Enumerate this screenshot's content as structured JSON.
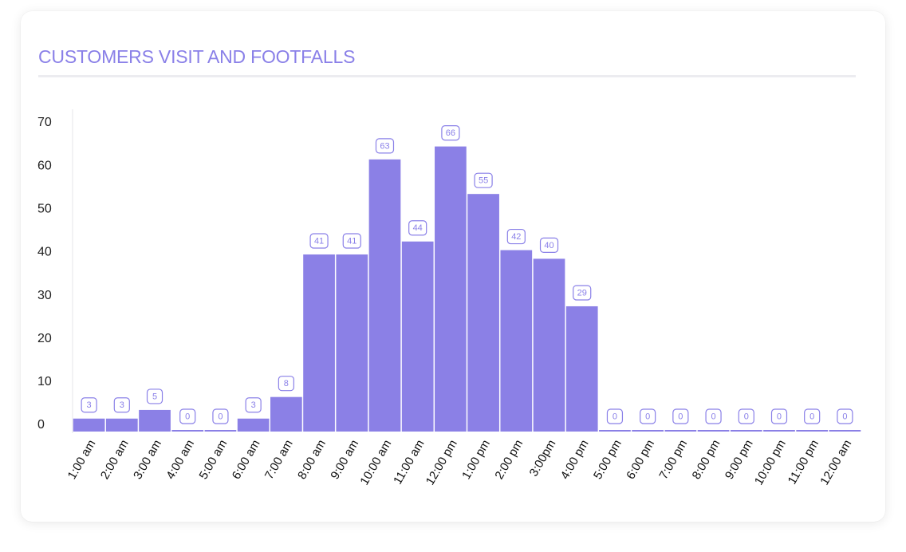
{
  "card": {
    "title": "CUSTOMERS VISIT AND FOOTFALLS"
  },
  "colors": {
    "title": "#8a80e8",
    "bar": "#8b80e6",
    "label_border": "#8a80e8",
    "axis": "#e6e6ea"
  },
  "chart_data": {
    "type": "bar",
    "title": "CUSTOMERS VISIT AND FOOTFALLS",
    "xlabel": "",
    "ylabel": "",
    "ylim": [
      0,
      70
    ],
    "yticks": [
      0,
      10,
      20,
      30,
      40,
      50,
      60,
      70
    ],
    "grid": false,
    "categories": [
      "1:00 am",
      "2:00 am",
      "3:00 am",
      "4:00 am",
      "5:00 am",
      "6:00 am",
      "7:00 am",
      "8:00 am",
      "9:00 am",
      "10:00 am",
      "11:00 am",
      "12:00 pm",
      "1:00 pm",
      "2:00 pm",
      "3:00pm",
      "4:00 pm",
      "5:00 pm",
      "6:00 pm",
      "7:00 pm",
      "8:00 pm",
      "9:00 pm",
      "10:00 pm",
      "11:00 pm",
      "12:00 am"
    ],
    "values": [
      3,
      3,
      5,
      0,
      0,
      3,
      8,
      41,
      41,
      63,
      44,
      66,
      55,
      42,
      40,
      29,
      0,
      0,
      0,
      0,
      0,
      0,
      0,
      0
    ]
  }
}
